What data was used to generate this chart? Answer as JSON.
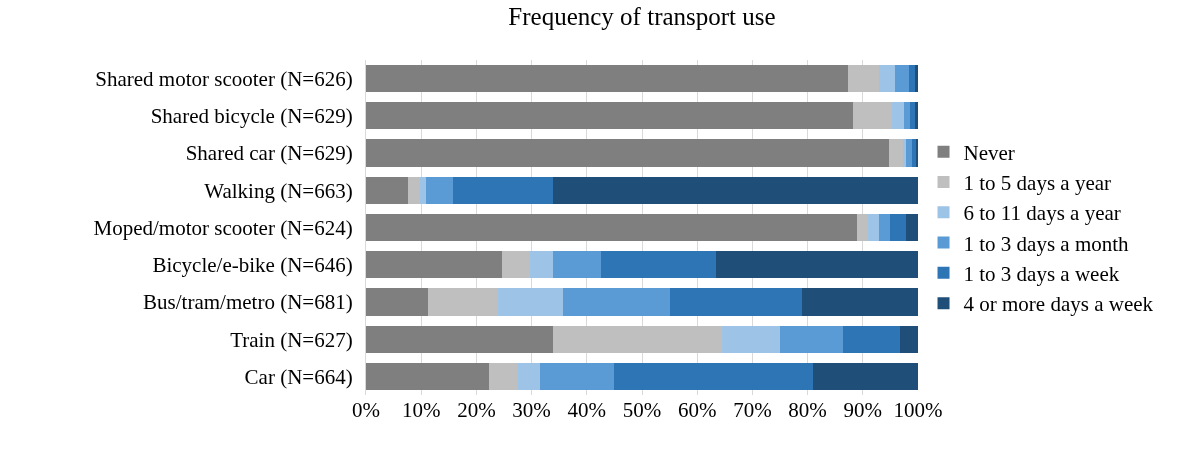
{
  "chart_data": {
    "type": "bar",
    "title": "Frequency of transport use",
    "orientation": "horizontal",
    "stacked": true,
    "categories": [
      "Shared motor scooter (N=626)",
      "Shared bicycle (N=629)",
      "Shared car (N=629)",
      "Walking (N=663)",
      "Moped/motor scooter (N=624)",
      "Bicycle/e-bike (N=646)",
      "Bus/tram/metro (N=681)",
      "Train (N=627)",
      "Car (N=664)"
    ],
    "series": [
      {
        "name": "Never",
        "color": "#7f7f7f",
        "values": [
          87.4,
          88.3,
          94.7,
          7.6,
          89.0,
          24.7,
          11.3,
          33.9,
          22.2
        ]
      },
      {
        "name": "1 to 5 days a year",
        "color": "#bfbfbf",
        "values": [
          5.6,
          7.0,
          2.5,
          2.2,
          1.9,
          5.0,
          12.6,
          30.6,
          5.3
        ]
      },
      {
        "name": "6 to 11 days a year",
        "color": "#9dc3e6",
        "values": [
          2.9,
          2.1,
          0.7,
          1.1,
          2.1,
          4.2,
          11.7,
          10.5,
          4.1
        ]
      },
      {
        "name": "1 to 3 days a month",
        "color": "#5b9bd5",
        "values": [
          2.4,
          1.2,
          1.1,
          4.9,
          1.9,
          8.7,
          19.4,
          11.5,
          13.3
        ]
      },
      {
        "name": "1 to 3 days a week",
        "color": "#2e75b6",
        "values": [
          1.2,
          0.9,
          0.7,
          18.1,
          3.0,
          20.8,
          23.9,
          10.2,
          36.1
        ]
      },
      {
        "name": "4 or more days a week",
        "color": "#1f4e79",
        "values": [
          0.5,
          0.5,
          0.3,
          66.1,
          2.1,
          36.6,
          21.1,
          3.3,
          19.0
        ]
      }
    ],
    "xlim": [
      0,
      100
    ],
    "xticks": [
      {
        "value": 0,
        "label": "0%"
      },
      {
        "value": 10,
        "label": "10%"
      },
      {
        "value": 20,
        "label": "20%"
      },
      {
        "value": 30,
        "label": "30%"
      },
      {
        "value": 40,
        "label": "40%"
      },
      {
        "value": 50,
        "label": "50%"
      },
      {
        "value": 60,
        "label": "60%"
      },
      {
        "value": 70,
        "label": "70%"
      },
      {
        "value": 80,
        "label": "80%"
      },
      {
        "value": 90,
        "label": "90%"
      },
      {
        "value": 100,
        "label": "100%"
      }
    ],
    "grid": "x",
    "legend": "right"
  }
}
